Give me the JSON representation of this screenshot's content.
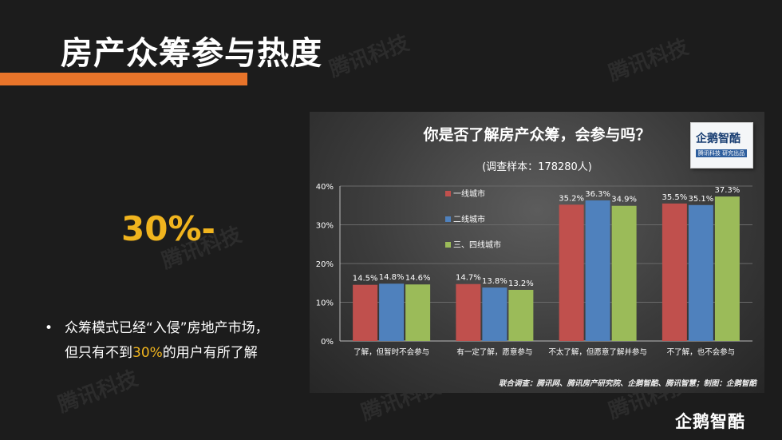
{
  "slide": {
    "title": "房产众筹参与热度",
    "big_stat": "30%-",
    "bullet_marker": "•",
    "bullet_before": "众筹模式已经“入侵”房地产市场，但只有不到",
    "bullet_highlight": "30%",
    "bullet_after": "的用户有所了解",
    "watermark": "腾讯科技",
    "footer_logo": "企鹅智酷"
  },
  "logo": {
    "name": "企鹅智酷",
    "tagline": "腾讯科技 研究出品"
  },
  "colors": {
    "accent": "#e8742a",
    "highlight": "#f0b41e",
    "series1": "#c0504d",
    "series2": "#4f81bd",
    "series3": "#9bbb59"
  },
  "chart_data": {
    "type": "bar",
    "title": "你是否了解房产众筹，会参与吗？",
    "subtitle": "(调查样本：178280人)",
    "categories": [
      "了解，但暂时不会参与",
      "有一定了解，愿意参与",
      "不太了解，但愿意了解并参与",
      "不了解，也不会参与"
    ],
    "series": [
      {
        "name": "一线城市",
        "values": [
          14.5,
          14.7,
          35.2,
          35.5
        ]
      },
      {
        "name": "二线城市",
        "values": [
          14.8,
          13.8,
          36.3,
          35.1
        ]
      },
      {
        "name": "三、四线城市",
        "values": [
          14.6,
          13.2,
          34.9,
          37.3
        ]
      }
    ],
    "ylim": [
      0,
      40
    ],
    "yticks": [
      "0%",
      "10%",
      "20%",
      "30%",
      "40%"
    ],
    "value_suffix": "%",
    "legend_position": "top-left",
    "grid": true,
    "source": "联合调查：腾讯网、腾讯房产研究院、企鹅智酷、腾讯智慧；制图：企鹅智酷"
  }
}
